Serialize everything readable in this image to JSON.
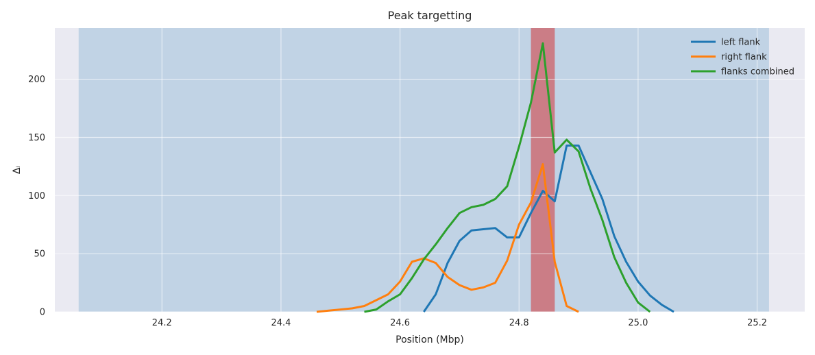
{
  "chart_data": {
    "type": "line",
    "title": "Peak targetting",
    "xlabel": "Position (Mbp)",
    "ylabel": "Δᵢ",
    "xlim": [
      24.02,
      25.28
    ],
    "ylim": [
      0,
      244
    ],
    "xticks": [
      24.2,
      24.4,
      24.6,
      24.8,
      25.0,
      25.2
    ],
    "yticks": [
      0,
      50,
      100,
      150,
      200
    ],
    "grid": true,
    "legend_position": "top-right",
    "shaded_regions": [
      {
        "x0": 24.06,
        "x1": 25.22,
        "color": "#1f77b4",
        "opacity": 0.2
      },
      {
        "x0": 24.82,
        "x1": 24.86,
        "color": "#d62728",
        "opacity": 0.5
      }
    ],
    "series": [
      {
        "name": "left flank",
        "color": "#1f77b4",
        "x": [
          24.64,
          24.66,
          24.68,
          24.7,
          24.72,
          24.74,
          24.76,
          24.78,
          24.8,
          24.82,
          24.84,
          24.86,
          24.88,
          24.9,
          24.92,
          24.94,
          24.96,
          24.98,
          25.0,
          25.02,
          25.04,
          25.06
        ],
        "y": [
          0,
          15,
          42,
          61,
          70,
          71,
          72,
          64,
          64,
          85,
          104,
          95,
          143,
          143,
          120,
          97,
          65,
          43,
          26,
          14,
          6,
          0
        ]
      },
      {
        "name": "right flank",
        "color": "#ff7f0e",
        "x": [
          24.46,
          24.48,
          24.5,
          24.52,
          24.54,
          24.56,
          24.58,
          24.6,
          24.62,
          24.64,
          24.66,
          24.68,
          24.7,
          24.72,
          24.74,
          24.76,
          24.78,
          24.8,
          24.82,
          24.84,
          24.86,
          24.88,
          24.9
        ],
        "y": [
          0,
          1,
          2,
          3,
          5,
          10,
          15,
          26,
          43,
          46,
          42,
          30,
          23,
          19,
          21,
          25,
          44,
          75,
          94,
          127,
          43,
          5,
          0
        ]
      },
      {
        "name": "flanks combined",
        "color": "#2ca02c",
        "x": [
          24.54,
          24.56,
          24.58,
          24.6,
          24.62,
          24.64,
          24.66,
          24.68,
          24.7,
          24.72,
          24.74,
          24.76,
          24.78,
          24.8,
          24.82,
          24.84,
          24.86,
          24.88,
          24.9,
          24.92,
          24.94,
          24.96,
          24.98,
          25.0,
          25.02
        ],
        "y": [
          0,
          2,
          9,
          15,
          29,
          45,
          58,
          72,
          85,
          90,
          92,
          97,
          108,
          142,
          180,
          231,
          137,
          148,
          138,
          106,
          79,
          47,
          25,
          8,
          0
        ]
      }
    ]
  }
}
